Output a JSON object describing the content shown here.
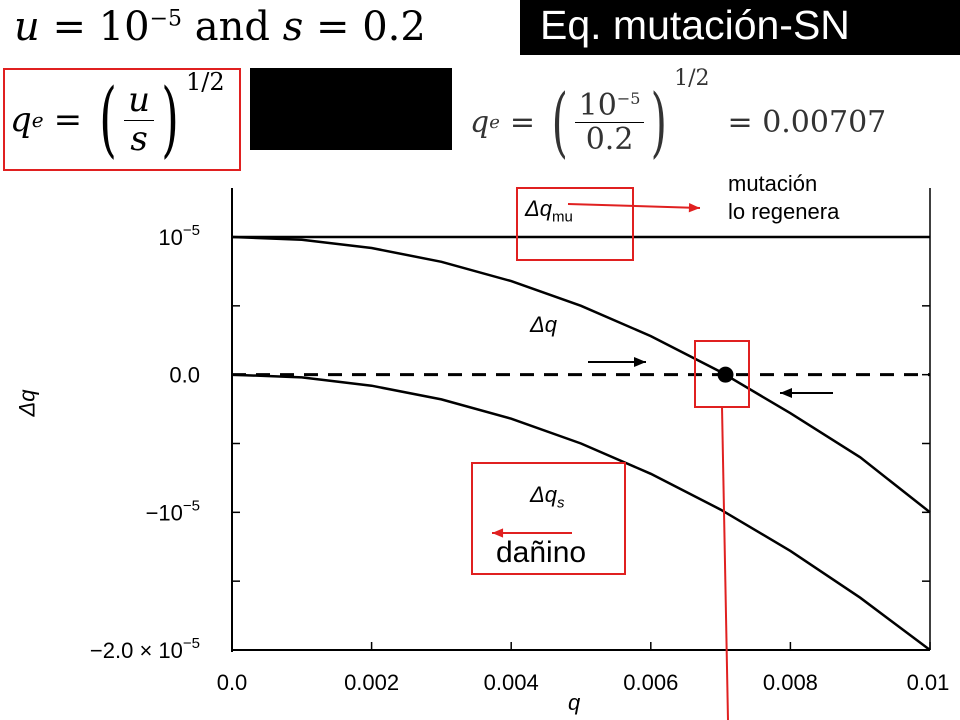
{
  "header": {
    "title": "Eq. mutación-SN",
    "params": {
      "u_lhs": "u",
      "eq": "=",
      "u_base": "10",
      "u_exp": "−5",
      "and_word": "and",
      "s_lhs": "s",
      "s_value": "0.2"
    }
  },
  "formula_general": {
    "lhs_symbol": "q",
    "lhs_sub": "e",
    "eq": "=",
    "numerator": "u",
    "denominator": "s",
    "exponent": "1/2"
  },
  "formula_numeric": {
    "lhs_symbol": "q",
    "lhs_sub": "e",
    "eq": "=",
    "numerator": "10",
    "numerator_exp": "−5",
    "denominator": "0.2",
    "exponent": "1/2",
    "result": "= 0.00707"
  },
  "annotations": {
    "mutation_line1": "mutación",
    "mutation_line2": "lo regenera",
    "harmful": "dañino"
  },
  "colors": {
    "accent_red": "#e02020",
    "title_bg": "#000000",
    "title_fg": "#ffffff"
  },
  "chart_data": {
    "type": "line",
    "xlabel": "q",
    "ylabel": "Δq",
    "xlim": [
      0,
      0.01
    ],
    "ylim": [
      -2e-05,
      1.5e-05
    ],
    "x_ticks": [
      {
        "value": 0,
        "label": "0.0"
      },
      {
        "value": 0.002,
        "label": "0.002"
      },
      {
        "value": 0.004,
        "label": "0.004"
      },
      {
        "value": 0.006,
        "label": "0.006"
      },
      {
        "value": 0.008,
        "label": "0.008"
      },
      {
        "value": 0.01,
        "label": "0.01"
      }
    ],
    "y_ticks": [
      {
        "value": 1e-05,
        "base": "10",
        "exp": "−5",
        "prefix": ""
      },
      {
        "value": 0,
        "base": "0.0",
        "exp": "",
        "prefix": ""
      },
      {
        "value": -1e-05,
        "base": "−10",
        "exp": "−5",
        "prefix": ""
      },
      {
        "value": -2e-05,
        "base": "−2.0 × 10",
        "exp": "−5",
        "prefix": ""
      }
    ],
    "x": [
      0,
      0.001,
      0.002,
      0.003,
      0.004,
      0.005,
      0.006,
      0.007,
      0.008,
      0.009,
      0.01
    ],
    "series": [
      {
        "name": "Δq mu",
        "label_base": "Δq",
        "label_sub": "mu",
        "values": [
          1e-05,
          1e-05,
          1e-05,
          1e-05,
          1e-05,
          1e-05,
          1e-05,
          1e-05,
          1e-05,
          1e-05,
          1e-05
        ]
      },
      {
        "name": "Δq",
        "label_base": "Δq",
        "label_sub": "",
        "values": [
          1e-05,
          9.8e-06,
          9.2e-06,
          8.2e-06,
          6.8e-06,
          5e-06,
          2.8e-06,
          2e-07,
          -2.8e-06,
          -6e-06,
          -1e-05
        ]
      },
      {
        "name": "Δq s",
        "label_base": "Δq",
        "label_sub": "s",
        "values": [
          0,
          -2e-07,
          -8e-07,
          -1.8e-06,
          -3.2e-06,
          -5e-06,
          -7.2e-06,
          -9.8e-06,
          -1.28e-05,
          -1.62e-05,
          -2e-05
        ]
      }
    ],
    "zero_line": "dashed",
    "equilibrium": {
      "q": 0.00707,
      "dq": 0
    }
  }
}
